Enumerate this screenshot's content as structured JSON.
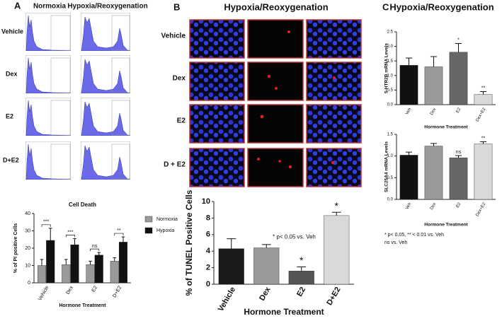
{
  "panels": {
    "a": {
      "label": "A",
      "columns": [
        "Normoxia",
        "Hypoxia/Reoxygenation"
      ],
      "rows": [
        "Vehicle",
        "Dex",
        "E2",
        "D+E2"
      ]
    },
    "b": {
      "label": "B",
      "title": "Hypoxia/Reoxygenation",
      "rows": [
        "Vehicle",
        "Dex",
        "E2",
        "D + E2"
      ]
    },
    "c": {
      "label": "C",
      "title": "Hypoxia/Reoxygenation",
      "note": [
        "* p< 0.05, ** < 0.01 vs. Veh",
        "ns vs. Veh"
      ]
    }
  },
  "chart_data": [
    {
      "type": "bar",
      "title": "Cell Death",
      "xlabel": "Hormone Treatment",
      "ylabel": "% of PI positive Cells",
      "categories": [
        "Vehicle",
        "Dex",
        "E2",
        "D+E2"
      ],
      "series": [
        {
          "name": "Normoxia",
          "color": "#9a9a9a",
          "values": [
            10,
            10.5,
            10.5,
            12.5
          ],
          "errors": [
            3.5,
            3,
            2,
            2
          ]
        },
        {
          "name": "Hypoxia",
          "color": "#111111",
          "values": [
            24.5,
            22,
            16,
            23.5
          ],
          "errors": [
            7,
            3.5,
            1.5,
            3
          ]
        }
      ],
      "annotations": [
        "***",
        "***",
        "ns",
        "**"
      ],
      "ylim": [
        0,
        40
      ],
      "yticks": [
        0,
        10,
        20,
        30,
        40
      ],
      "legend": "right"
    },
    {
      "type": "bar",
      "xlabel": "Hormone Treatment",
      "ylabel": "% of TUNEL Positive Cells",
      "categories": [
        "Vehicle",
        "Dex",
        "E2",
        "D+E2"
      ],
      "values": [
        4.3,
        4.4,
        1.6,
        8.3
      ],
      "errors": [
        1.2,
        0.4,
        0.5,
        0.4
      ],
      "colors": [
        "#1a1a1a",
        "#9a9a9a",
        "#555555",
        "#d9d9d9"
      ],
      "annotations": [
        null,
        null,
        "*",
        "*"
      ],
      "note": "* p< 0.05 vs. Veh",
      "ylim": [
        0,
        10
      ],
      "yticks": [
        0,
        2,
        4,
        6,
        8,
        10
      ]
    },
    {
      "type": "bar",
      "xlabel": "Hormone Treatment",
      "ylabel": "5-HTR2B mRNA Levels",
      "categories": [
        "Veh",
        "Dex",
        "E2",
        "Dex+E2"
      ],
      "values": [
        1.35,
        1.3,
        1.8,
        0.35
      ],
      "errors": [
        0.25,
        0.35,
        0.3,
        0.1
      ],
      "colors": [
        "#111111",
        "#9a9a9a",
        "#666666",
        "#d9d9d9"
      ],
      "annotations": [
        null,
        null,
        "*",
        "**"
      ],
      "ylim": [
        0,
        2.5
      ],
      "yticks": [
        {
          "value": 0,
          "label": "0.0"
        },
        0.5,
        {
          "value": 1,
          "label": "1.0"
        },
        1.5,
        {
          "value": 2,
          "label": "2.0"
        },
        2.5
      ]
    },
    {
      "type": "bar",
      "xlabel": "Hormone Treatment",
      "ylabel": "SLC25A4 mRNA Levels",
      "categories": [
        "Veh",
        "Dex",
        "E2",
        "Dex+E2"
      ],
      "values": [
        1.02,
        1.23,
        0.96,
        1.28
      ],
      "errors": [
        0.07,
        0.06,
        0.05,
        0.05
      ],
      "colors": [
        "#111111",
        "#9a9a9a",
        "#666666",
        "#d9d9d9"
      ],
      "annotations": [
        null,
        null,
        "ns",
        "**"
      ],
      "ylim": [
        0,
        1.5
      ],
      "yticks": [
        {
          "value": 0,
          "label": "0.0"
        },
        0.5,
        {
          "value": 1,
          "label": "1.0"
        },
        1.5
      ]
    }
  ]
}
